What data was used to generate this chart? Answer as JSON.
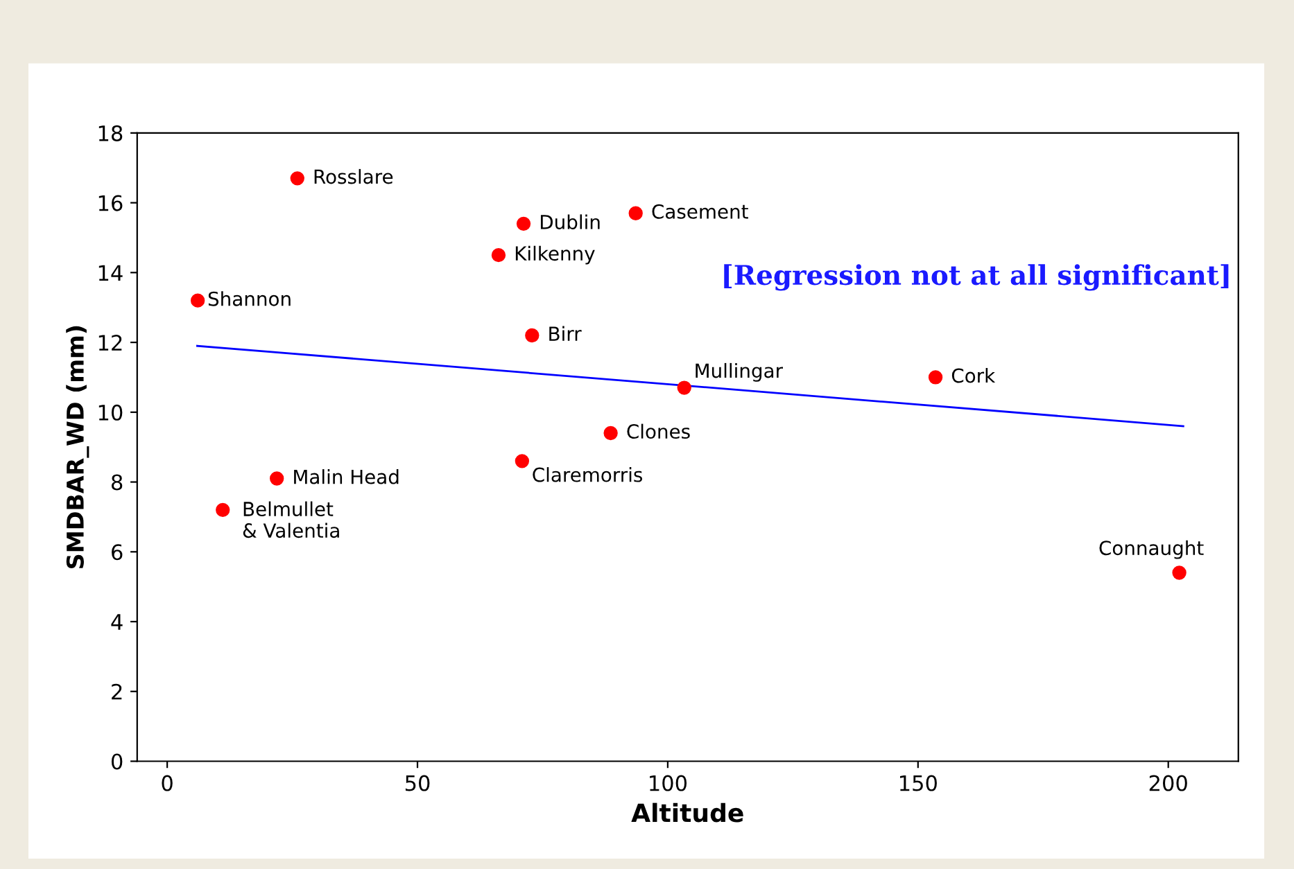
{
  "chart_data": {
    "type": "scatter",
    "xlabel": "Altitude",
    "ylabel": "SMDBAR_WD (mm)",
    "xlim": [
      -6,
      214
    ],
    "ylim": [
      0,
      18
    ],
    "xticks": [
      0,
      50,
      100,
      150,
      200
    ],
    "yticks": [
      0,
      2,
      4,
      6,
      8,
      10,
      12,
      14,
      16,
      18
    ],
    "grid": false,
    "series": [
      {
        "marker": "circle",
        "color": "#ff0000",
        "x": [
          26,
          71.2,
          93.6,
          66.2,
          6.1,
          72.9,
          103.3,
          153.5,
          88.6,
          70.9,
          21.9,
          11.1,
          202.2
        ],
        "values": [
          16.7,
          15.4,
          15.7,
          14.5,
          13.2,
          12.2,
          10.7,
          11.0,
          9.4,
          8.6,
          8.1,
          7.2,
          5.4
        ]
      },
      {
        "type": "line",
        "color": "#0000ff",
        "x": [
          6,
          203
        ],
        "values": [
          11.9,
          9.6
        ]
      }
    ],
    "annotations": [
      {
        "text": "Rosslare",
        "x": 26,
        "y": 16.7
      },
      {
        "text": "Dublin",
        "x": 71.2,
        "y": 15.4
      },
      {
        "text": "Casement",
        "x": 93.6,
        "y": 15.7
      },
      {
        "text": "Kilkenny",
        "x": 66.2,
        "y": 14.5
      },
      {
        "text": "Shannon",
        "x": 6.1,
        "y": 13.2
      },
      {
        "text": "Birr",
        "x": 72.9,
        "y": 12.2
      },
      {
        "text": "Mullingar",
        "x": 103.3,
        "y": 10.7
      },
      {
        "text": "Cork",
        "x": 153.5,
        "y": 11.0
      },
      {
        "text": "Clones",
        "x": 88.6,
        "y": 9.4
      },
      {
        "text": "Claremorris",
        "x": 70.9,
        "y": 8.6
      },
      {
        "text": "Malin Head",
        "x": 21.9,
        "y": 8.1
      },
      {
        "text": "Belmullet\n& Valentia",
        "x": 11.1,
        "y": 7.2
      },
      {
        "text": "Connaught",
        "x": 202.2,
        "y": 5.4
      },
      "[Regression not at all significant]"
    ]
  }
}
